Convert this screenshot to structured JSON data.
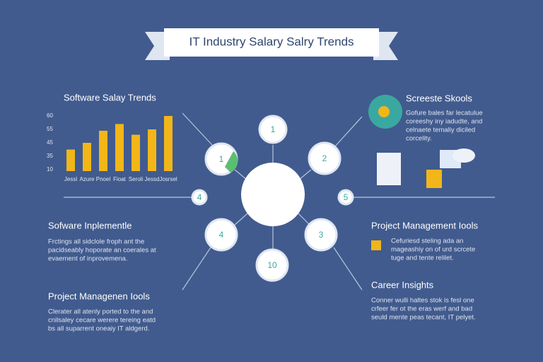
{
  "header": {
    "title": "IT Industry Salary Salry Trends"
  },
  "salary_chart": {
    "title": "Software Salay Trends",
    "type": "bar",
    "color": "#f2b619",
    "yticks": [
      60,
      55,
      45,
      35,
      10
    ],
    "categories": [
      "Jessl",
      "Azure",
      "Pnoel",
      "Fioat",
      "Seroli",
      "Jessd",
      "Josrsel"
    ],
    "values": [
      40,
      45,
      54,
      57,
      51,
      55,
      60
    ]
  },
  "sections": [
    {
      "title": "Sofware Inplementle",
      "lines": [
        "Frctings all sidclole froph ant the",
        "pacidseably hoporate an coerales at",
        "evaement of inprovemena."
      ]
    },
    {
      "title": "Project Managenen Iools",
      "lines": [
        "Clerater all atenly ported to the and",
        "cnilsaley cecare werere tereing eatd",
        "bs all suparrent oneaiy IT aldgerd."
      ]
    },
    {
      "title": "Screeste Skools",
      "lines": [
        "Gofure bales far lecatulue",
        "coreeshy iny iadudte, and",
        "celnaete temaliy diciled",
        "corcelity."
      ]
    },
    {
      "title": "Project Management Iools",
      "lines": [
        "Cefuriesd steling ada an",
        "mageashiy on of urd scrcete",
        "tuge and tente relilet."
      ]
    },
    {
      "title": "Career Insights",
      "lines": [
        "Conner wulli haltes stok is fesl one",
        "crfeer fer ot the eras werf and bad",
        "seuld mente peas tecant, IT pelyet."
      ]
    }
  ],
  "nodes": [
    {
      "label": "1"
    },
    {
      "label": "1"
    },
    {
      "label": "2"
    },
    {
      "label": "4"
    },
    {
      "label": "5"
    },
    {
      "label": "4"
    },
    {
      "label": "3"
    },
    {
      "label": "10"
    }
  ]
}
